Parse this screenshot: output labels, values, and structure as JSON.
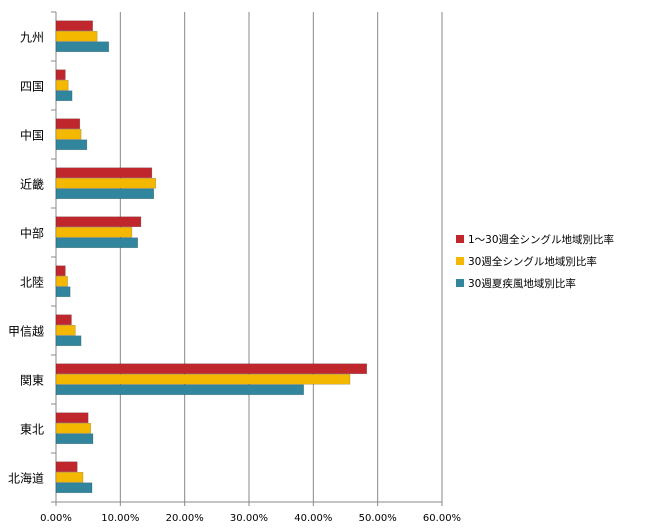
{
  "chart_data": {
    "type": "bar",
    "orientation": "horizontal",
    "categories": [
      "九州",
      "四国",
      "中国",
      "近畿",
      "中部",
      "北陸",
      "甲信越",
      "関東",
      "東北",
      "北海道"
    ],
    "series": [
      {
        "name": "1〜30週全シングル地域別比率",
        "color": "#C0272D",
        "values": [
          5.7,
          1.45,
          3.7,
          14.9,
          13.2,
          1.45,
          2.4,
          48.3,
          5.0,
          3.3
        ]
      },
      {
        "name": "30週全シングル地域別比率",
        "color": "#F5B800",
        "values": [
          6.4,
          1.9,
          3.9,
          15.5,
          11.8,
          1.8,
          3.0,
          45.7,
          5.4,
          4.2
        ]
      },
      {
        "name": "30週夏疾風地域別比率",
        "color": "#31859C",
        "values": [
          8.2,
          2.5,
          4.8,
          15.2,
          12.7,
          2.2,
          3.9,
          38.5,
          5.75,
          5.6
        ]
      }
    ],
    "xlim": [
      0,
      60
    ],
    "x_ticks": [
      "0.00%",
      "10.00%",
      "20.00%",
      "30.00%",
      "40.00%",
      "50.00%",
      "60.00%"
    ],
    "grid": true,
    "legend_position": "right"
  }
}
